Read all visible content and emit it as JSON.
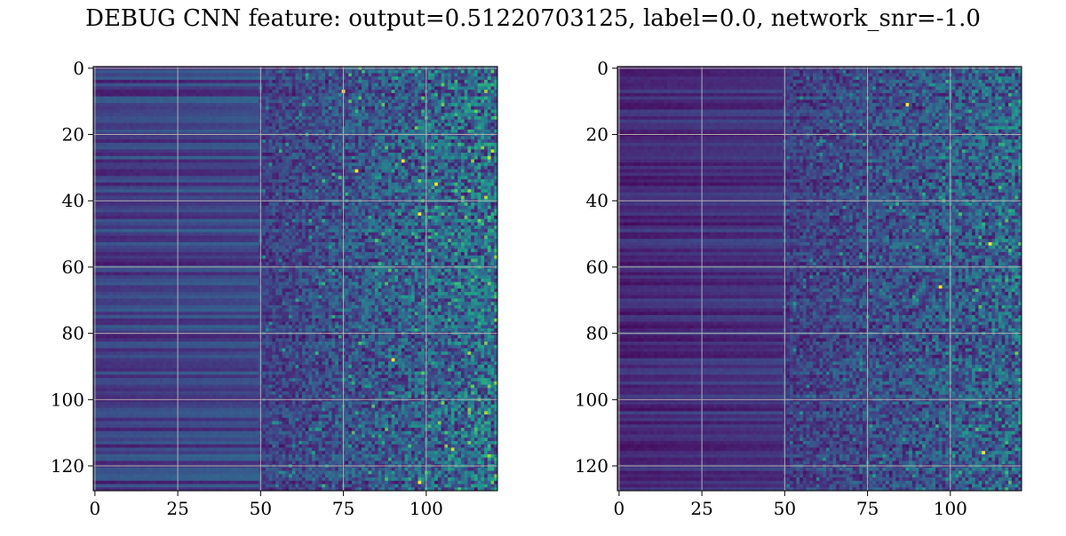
{
  "title": "DEBUG CNN feature: output=0.51220703125, label=0.0, network_snr=-1.0",
  "chart_data": [
    {
      "type": "heatmap",
      "colormap": "viridis",
      "rows": 128,
      "cols": 122,
      "xlim": [
        0,
        122
      ],
      "ylim": [
        128,
        0
      ],
      "x_ticks": [
        "0",
        "25",
        "50",
        "75",
        "100"
      ],
      "y_ticks": [
        "0",
        "20",
        "40",
        "60",
        "80",
        "100",
        "120"
      ],
      "grid": true,
      "grid_color": "#b0b0b0",
      "description_pattern": "columns 0-50 smooth horizontal banding (low-mid values), columns 50-122 noisy speckle with increasing intensity",
      "seed": 7,
      "hot_spots": [
        [
          7,
          75
        ],
        [
          31,
          79
        ],
        [
          44,
          98
        ],
        [
          88,
          90
        ],
        [
          125,
          98
        ],
        [
          28,
          93
        ],
        [
          35,
          103
        ]
      ]
    },
    {
      "type": "heatmap",
      "colormap": "viridis",
      "rows": 128,
      "cols": 122,
      "xlim": [
        0,
        122
      ],
      "ylim": [
        128,
        0
      ],
      "x_ticks": [
        "0",
        "25",
        "50",
        "75",
        "100"
      ],
      "y_ticks": [
        "0",
        "20",
        "40",
        "60",
        "80",
        "100",
        "120"
      ],
      "grid": true,
      "grid_color": "#b0b0b0",
      "description_pattern": "columns 0-50 dark banding (lower values than left panel), columns 50-122 sparse speckle",
      "seed": 21,
      "hot_spots": [
        [
          11,
          87
        ],
        [
          66,
          97
        ],
        [
          116,
          110
        ],
        [
          53,
          112
        ]
      ]
    }
  ]
}
